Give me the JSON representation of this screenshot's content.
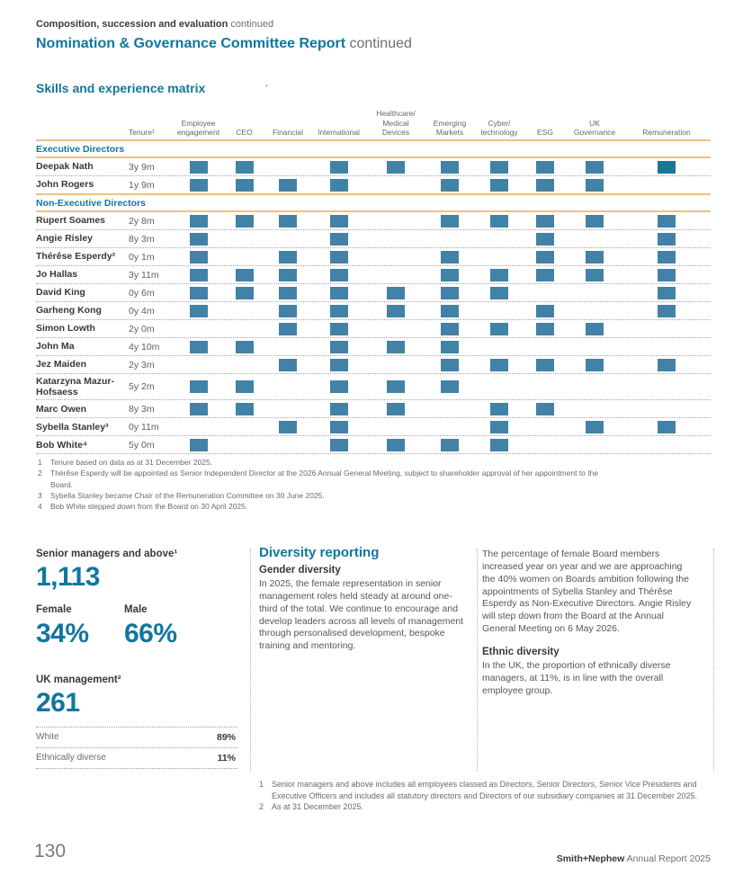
{
  "header": {
    "eyebrow_bold": "Composition, succession and evaluation",
    "eyebrow_rest": " continued",
    "title_bold": "Nomination & Governance Committee Report",
    "title_rest": " continued"
  },
  "matrix": {
    "heading": "Skills and experience matrix",
    "stray_dot": ".",
    "tenure_header": "Tenure¹",
    "skill_columns": [
      "Employee\nengagement",
      "CEO",
      "Financial",
      "International",
      "Healthcare/\nMedical\nDevices",
      "Emerging\nMarkets",
      "Cyber/\ntechnology",
      "ESG",
      "UK\nGovernance",
      "Remuneration"
    ],
    "sections": [
      {
        "label": "Executive Directors",
        "rows": [
          {
            "name": "Deepak Nath",
            "tenure": "3y 9m",
            "marks": [
              1,
              1,
              0,
              1,
              1,
              1,
              1,
              1,
              1,
              2
            ]
          },
          {
            "name": "John Rogers",
            "tenure": "1y 9m",
            "marks": [
              1,
              1,
              1,
              1,
              0,
              1,
              1,
              1,
              1,
              0
            ]
          }
        ]
      },
      {
        "label": "Non-Executive Directors",
        "rows": [
          {
            "name": "Rupert Soames",
            "tenure": "2y 8m",
            "marks": [
              1,
              1,
              1,
              1,
              0,
              1,
              1,
              1,
              1,
              1
            ]
          },
          {
            "name": "Angie Risley",
            "tenure": "8y 3m",
            "marks": [
              1,
              0,
              0,
              1,
              0,
              0,
              0,
              1,
              0,
              1
            ]
          },
          {
            "name": "Thérêse Esperdy²",
            "tenure": "0y 1m",
            "marks": [
              1,
              0,
              1,
              1,
              0,
              1,
              0,
              1,
              1,
              1
            ]
          },
          {
            "name": "Jo Hallas",
            "tenure": "3y 11m",
            "marks": [
              1,
              1,
              1,
              1,
              0,
              1,
              1,
              1,
              1,
              1
            ]
          },
          {
            "name": "David King",
            "tenure": "0y 6m",
            "marks": [
              1,
              1,
              1,
              1,
              1,
              1,
              1,
              0,
              0,
              1
            ]
          },
          {
            "name": "Garheng Kong",
            "tenure": "0y 4m",
            "marks": [
              1,
              0,
              1,
              1,
              1,
              1,
              0,
              1,
              0,
              1
            ]
          },
          {
            "name": "Simon Lowth",
            "tenure": "2y 0m",
            "marks": [
              0,
              0,
              1,
              1,
              0,
              1,
              1,
              1,
              1,
              0
            ]
          },
          {
            "name": "John Ma",
            "tenure": "4y 10m",
            "marks": [
              1,
              1,
              0,
              1,
              1,
              1,
              0,
              0,
              0,
              0
            ]
          },
          {
            "name": "Jez Maiden",
            "tenure": "2y 3m",
            "marks": [
              0,
              0,
              1,
              1,
              0,
              1,
              1,
              1,
              1,
              1
            ]
          },
          {
            "name": "Katarzyna Mazur-Hofsaess",
            "tenure": "5y 2m",
            "marks": [
              1,
              1,
              0,
              1,
              1,
              1,
              0,
              0,
              0,
              0
            ]
          },
          {
            "name": "Marc Owen",
            "tenure": "8y 3m",
            "marks": [
              1,
              1,
              0,
              1,
              1,
              0,
              1,
              1,
              0,
              0
            ]
          },
          {
            "name": "Sybella Stanley³",
            "tenure": "0y 11m",
            "marks": [
              0,
              0,
              1,
              1,
              0,
              0,
              1,
              0,
              1,
              1
            ]
          },
          {
            "name": "Bob White⁴",
            "tenure": "5y 0m",
            "marks": [
              1,
              0,
              0,
              1,
              1,
              1,
              1,
              0,
              0,
              0
            ]
          }
        ]
      }
    ],
    "footnotes": [
      "Tenure based on data as at 31 December 2025.",
      "Thérêse Esperdy will be appointed as Senior Independent Director at the 2026 Annual General Meeting, subject to shareholder approval of her appointment to the Board.",
      "Sybella Stanley became Chair of the Remuneration Committee on 30 June 2025.",
      "Bob White stepped down from the Board on 30 April 2025."
    ]
  },
  "stats": {
    "senior_label": "Senior managers and above¹",
    "senior_value": "1,113",
    "female_label": "Female",
    "female_value": "34%",
    "male_label": "Male",
    "male_value": "66%",
    "uk_label": "UK management²",
    "uk_value": "261",
    "ethnicity_rows": [
      {
        "label": "White",
        "value": "89%"
      },
      {
        "label": "Ethnically diverse",
        "value": "11%"
      }
    ]
  },
  "diversity": {
    "heading": "Diversity reporting",
    "gender_heading": "Gender diversity",
    "gender_text": "In 2025, the female representation in senior management roles held steady at around one-third of the total. We continue to encourage and develop leaders across all levels of management through personalised development, bespoke training and mentoring.",
    "board_text": "The percentage of female Board members increased year on year and we are approaching the 40% women on Boards ambition following the appointments of Sybella Stanley and Thérêse Esperdy as Non-Executive Directors. Angie Risley will step down from the Board at the Annual General Meeting on 6 May 2026.",
    "ethnic_heading": "Ethnic diversity",
    "ethnic_text": "In the UK, the proportion of ethnically diverse managers, at 11%, is in line with the overall employee group."
  },
  "bottom_footnotes": [
    "Senior managers and above includes all employees classed as Directors, Senior Directors, Senior Vice Presidents and Executive Officers and includes all statutory directors and Directors of our subsidiary companies at 31 December 2025.",
    "As at 31 December 2025."
  ],
  "footer": {
    "page_number": "130",
    "brand_bold": "Smith+Nephew",
    "brand_rest": " Annual Report 2025"
  },
  "colors": {
    "heading_blue": "#10769f",
    "mark_blue": "#4282a6",
    "mark_blue_dark": "#1a7696",
    "rule_orange": "#efc086"
  }
}
